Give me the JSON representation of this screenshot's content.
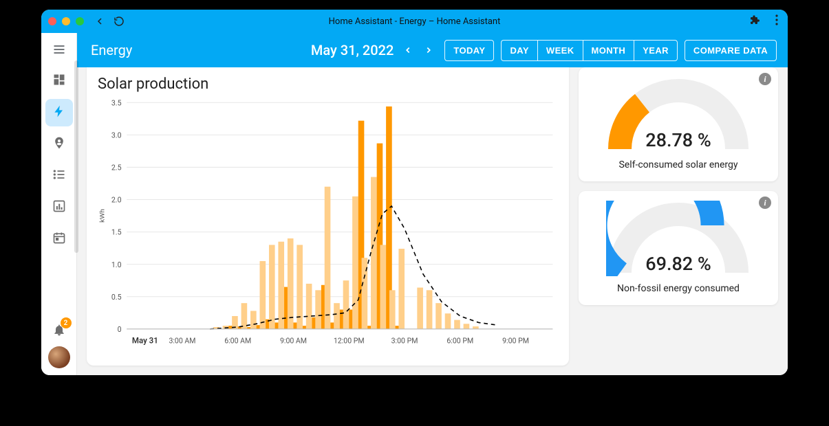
{
  "window": {
    "title": "Home Assistant - Energy – Home Assistant"
  },
  "sidebar": {
    "hamburger": "menu",
    "items": [
      {
        "name": "dashboard",
        "icon": "grid"
      },
      {
        "name": "energy",
        "icon": "bolt",
        "active": true
      },
      {
        "name": "map",
        "icon": "person-pin"
      },
      {
        "name": "logbook",
        "icon": "list"
      },
      {
        "name": "history",
        "icon": "chart"
      },
      {
        "name": "calendar",
        "icon": "calendar"
      }
    ],
    "notif_count": "2"
  },
  "topbar": {
    "page_title": "Energy",
    "date_text": "May 31, 2022",
    "today_label": "TODAY",
    "ranges": [
      "DAY",
      "WEEK",
      "MONTH",
      "YEAR"
    ],
    "compare_label": "COMPARE DATA"
  },
  "chart": {
    "title": "Solar production",
    "type": "bar+line",
    "y_label": "kWh",
    "y_ticks": [
      "0",
      "0.5",
      "1.0",
      "1.5",
      "2.0",
      "2.5",
      "3.0",
      "3.5"
    ],
    "y_max": 3.5,
    "x_date_label": "May 31",
    "x_ticks": [
      "3:00 AM",
      "6:00 AM",
      "9:00 AM",
      "12:00 PM",
      "3:00 PM",
      "6:00 PM",
      "9:00 PM"
    ],
    "grid_color": "#e7e7e7",
    "line_color": "#000000",
    "line_dash": "6 5",
    "bar_color_solid": "#ff9800",
    "bar_color_light": "#ffcf8a",
    "bars": [
      {
        "hour": 5.0,
        "light": 0.03,
        "solid": 0.0
      },
      {
        "hour": 5.5,
        "light": 0.05,
        "solid": 0.05
      },
      {
        "hour": 6.0,
        "light": 0.2,
        "solid": 0.04
      },
      {
        "hour": 6.5,
        "light": 0.4,
        "solid": 0.03
      },
      {
        "hour": 7.0,
        "light": 0.28,
        "solid": 0.06
      },
      {
        "hour": 7.5,
        "light": 1.05,
        "solid": 0.15
      },
      {
        "hour": 8.0,
        "light": 1.3,
        "solid": 0.1
      },
      {
        "hour": 8.5,
        "light": 1.35,
        "solid": 0.65
      },
      {
        "hour": 9.0,
        "light": 1.4,
        "solid": 0.1
      },
      {
        "hour": 9.5,
        "light": 1.3,
        "solid": 0.05
      },
      {
        "hour": 10.0,
        "light": 0.7,
        "solid": 0.18
      },
      {
        "hour": 10.5,
        "light": 0.6,
        "solid": 0.68
      },
      {
        "hour": 11.0,
        "light": 2.2,
        "solid": 0.1
      },
      {
        "hour": 11.5,
        "light": 0.4,
        "solid": 0.3
      },
      {
        "hour": 12.0,
        "light": 0.75,
        "solid": 0.3
      },
      {
        "hour": 12.5,
        "light": 2.05,
        "solid": 3.22
      },
      {
        "hour": 13.0,
        "light": 1.1,
        "solid": 0.05
      },
      {
        "hour": 13.5,
        "light": 2.35,
        "solid": 2.87
      },
      {
        "hour": 14.0,
        "light": 1.3,
        "solid": 3.44
      },
      {
        "hour": 14.5,
        "light": 0.6,
        "solid": 0.05
      },
      {
        "hour": 15.0,
        "light": 1.24,
        "solid": 0.0
      },
      {
        "hour": 15.5,
        "light": 0.0,
        "solid": 0.0
      },
      {
        "hour": 16.0,
        "light": 0.64,
        "solid": 0.0
      },
      {
        "hour": 16.5,
        "light": 0.6,
        "solid": 0.0
      },
      {
        "hour": 17.0,
        "light": 0.4,
        "solid": 0.0
      },
      {
        "hour": 17.5,
        "light": 0.24,
        "solid": 0.0
      },
      {
        "hour": 18.0,
        "light": 0.14,
        "solid": 0.0
      },
      {
        "hour": 18.5,
        "light": 0.08,
        "solid": 0.0
      },
      {
        "hour": 19.0,
        "light": 0.04,
        "solid": 0.0
      }
    ],
    "curve": [
      {
        "hour": 4.5,
        "v": 0.0
      },
      {
        "hour": 6.0,
        "v": 0.03
      },
      {
        "hour": 7.0,
        "v": 0.08
      },
      {
        "hour": 8.0,
        "v": 0.15
      },
      {
        "hour": 9.0,
        "v": 0.18
      },
      {
        "hour": 10.0,
        "v": 0.2
      },
      {
        "hour": 11.0,
        "v": 0.22
      },
      {
        "hour": 11.8,
        "v": 0.25
      },
      {
        "hour": 12.5,
        "v": 0.45
      },
      {
        "hour": 13.2,
        "v": 1.2
      },
      {
        "hour": 13.8,
        "v": 1.78
      },
      {
        "hour": 14.3,
        "v": 1.9
      },
      {
        "hour": 15.0,
        "v": 1.55
      },
      {
        "hour": 16.0,
        "v": 0.85
      },
      {
        "hour": 17.0,
        "v": 0.42
      },
      {
        "hour": 18.0,
        "v": 0.2
      },
      {
        "hour": 19.0,
        "v": 0.1
      },
      {
        "hour": 20.0,
        "v": 0.06
      }
    ]
  },
  "gauges": [
    {
      "value_text": "28.78 %",
      "label": "Self-consumed solar energy",
      "fraction": 0.2878,
      "color": "#ff9800",
      "track_color": "#eeeeee"
    },
    {
      "value_text": "69.82 %",
      "label": "Non-fossil energy consumed",
      "fraction": 0.6982,
      "color": "#2196f3",
      "track_color": "#eeeeee"
    }
  ]
}
